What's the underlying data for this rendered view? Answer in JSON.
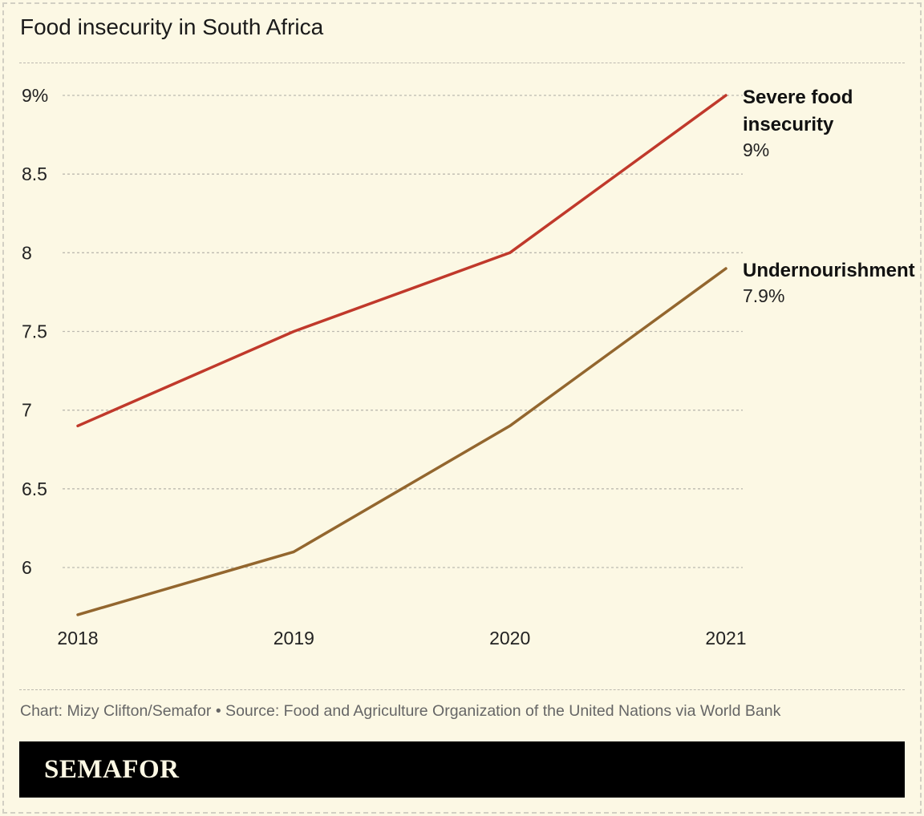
{
  "title": "Food insecurity in South Africa",
  "source": "Chart: Mizy Clifton/Semafor • Source: Food and Agriculture Organization of the United Nations via World Bank",
  "brand": "SEMAFOR",
  "colors": {
    "background": "#fcf8e4",
    "severe": "#c0392b",
    "undernourishment": "#93662e",
    "grid": "#bdbab0"
  },
  "chart_data": {
    "type": "line",
    "title": "Food insecurity in South Africa",
    "xlabel": "",
    "ylabel": "",
    "ylim": [
      5.7,
      9
    ],
    "grid": true,
    "x": [
      "2018",
      "2019",
      "2020",
      "2021"
    ],
    "y_ticks": [
      {
        "value": 9,
        "label": "9%"
      },
      {
        "value": 8.5,
        "label": "8.5"
      },
      {
        "value": 8,
        "label": "8"
      },
      {
        "value": 7.5,
        "label": "7.5"
      },
      {
        "value": 7,
        "label": "7"
      },
      {
        "value": 6.5,
        "label": "6.5"
      },
      {
        "value": 6,
        "label": "6"
      }
    ],
    "series": [
      {
        "name": "Severe food insecurity",
        "label_lines": [
          "Severe food",
          "insecurity"
        ],
        "end_label": "9%",
        "color": "#c0392b",
        "values": [
          6.9,
          7.5,
          8.0,
          9.0
        ]
      },
      {
        "name": "Undernourishment",
        "label_lines": [
          "Undernourishment"
        ],
        "end_label": "7.9%",
        "color": "#93662e",
        "values": [
          5.7,
          6.1,
          6.9,
          7.9
        ]
      }
    ]
  }
}
